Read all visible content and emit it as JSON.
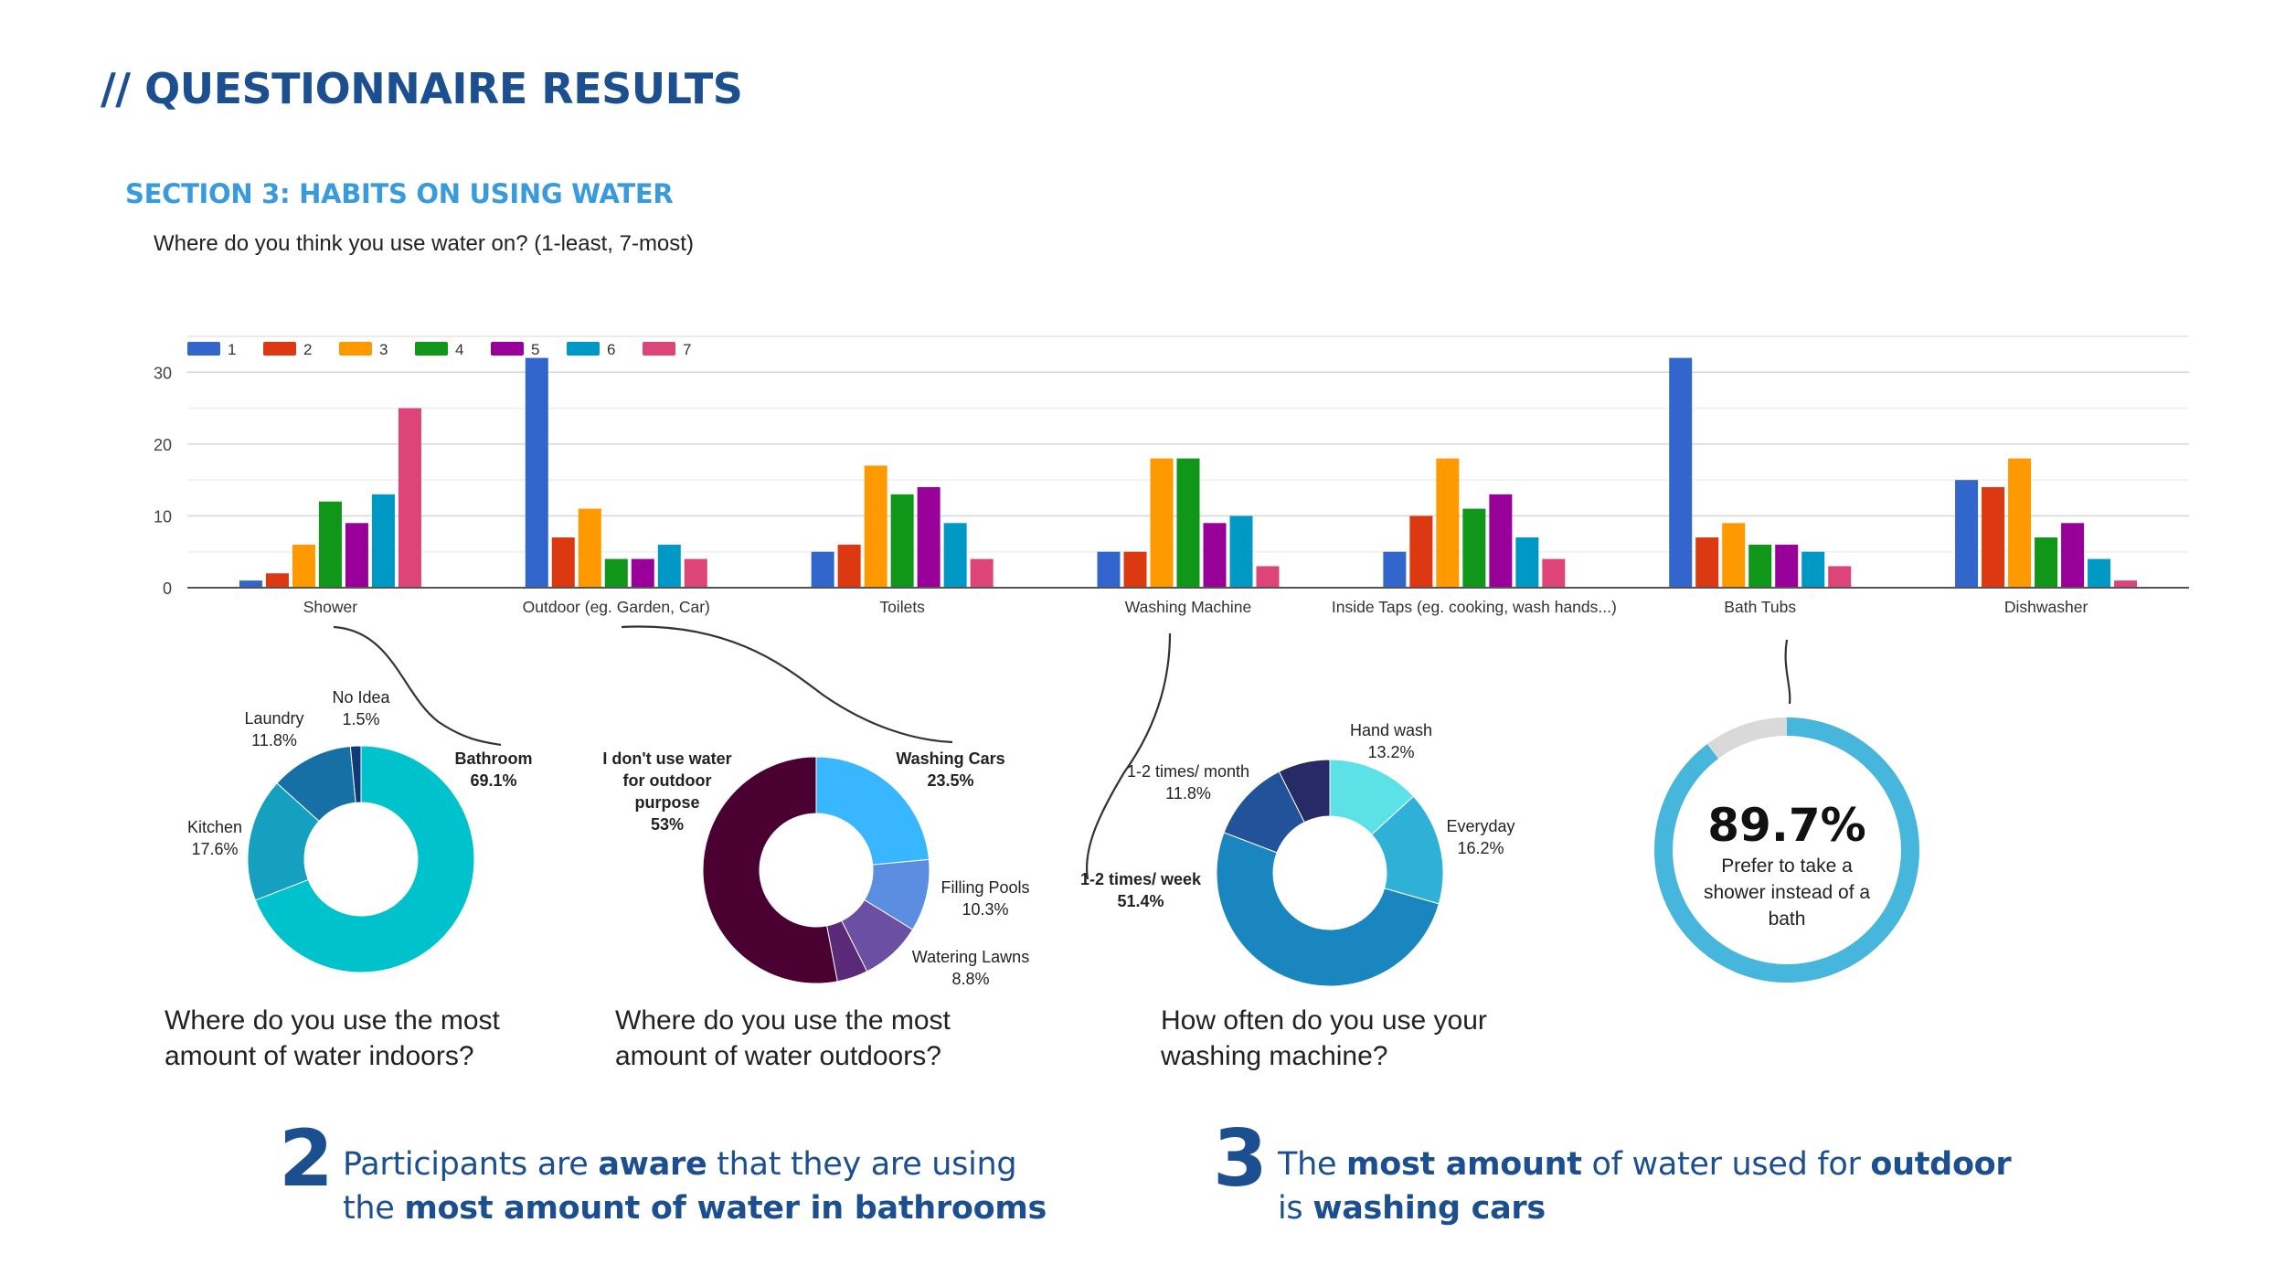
{
  "header": {
    "title": "// QUESTIONNAIRE RESULTS"
  },
  "section": {
    "title": "SECTION 3: HABITS ON USING WATER",
    "question": "Where do you think you use water on? (1-least, 7-most)"
  },
  "colors": {
    "series": [
      "#3366cc",
      "#dc3912",
      "#ff9900",
      "#109618",
      "#990099",
      "#0099c6",
      "#dd4477"
    ],
    "title": "#1b4f8f",
    "section": "#3a9bdc",
    "ring": "#46b6dc",
    "ring_track": "#d9d9d9"
  },
  "chart_data": [
    {
      "type": "bar",
      "title": "Where do you think you use water on? (1-least, 7-most)",
      "categories": [
        "Shower",
        "Outdoor (eg. Garden, Car)",
        "Toilets",
        "Washing Machine",
        "Inside Taps (eg. cooking, wash hands...)",
        "Bath Tubs",
        "Dishwasher"
      ],
      "series": [
        {
          "name": "1",
          "values": [
            1,
            32,
            5,
            5,
            5,
            32,
            15
          ]
        },
        {
          "name": "2",
          "values": [
            2,
            7,
            6,
            5,
            10,
            7,
            14
          ]
        },
        {
          "name": "3",
          "values": [
            6,
            11,
            17,
            18,
            18,
            9,
            18
          ]
        },
        {
          "name": "4",
          "values": [
            12,
            4,
            13,
            18,
            11,
            6,
            7
          ]
        },
        {
          "name": "5",
          "values": [
            9,
            4,
            14,
            9,
            13,
            6,
            9
          ]
        },
        {
          "name": "6",
          "values": [
            13,
            6,
            9,
            10,
            7,
            5,
            4
          ]
        },
        {
          "name": "7",
          "values": [
            25,
            4,
            4,
            3,
            4,
            3,
            1
          ]
        }
      ],
      "ylim": [
        0,
        35
      ],
      "yticks": [
        0,
        10,
        20,
        30
      ],
      "grid": true,
      "legend": "top-left"
    },
    {
      "type": "pie",
      "title": "Where do you use the most amount of water indoors?",
      "slices": [
        {
          "label": "Bathroom",
          "pct_label": "69.1%",
          "value": 69.1,
          "color": "#00c2cc",
          "bold": true
        },
        {
          "label": "Kitchen",
          "pct_label": "17.6%",
          "value": 17.6,
          "color": "#14a0be",
          "bold": false
        },
        {
          "label": "Laundry",
          "pct_label": "11.8%",
          "value": 11.8,
          "color": "#1670a6",
          "bold": false
        },
        {
          "label": "No Idea",
          "pct_label": "1.5%",
          "value": 1.5,
          "color": "#0f3a78",
          "bold": false
        }
      ]
    },
    {
      "type": "pie",
      "title": "Where do you use the most amount of water outdoors?",
      "slices": [
        {
          "label": "Washing Cars",
          "pct_label": "23.5%",
          "value": 23.5,
          "color": "#38b6ff",
          "bold": true
        },
        {
          "label": "Filling Pools",
          "pct_label": "10.3%",
          "value": 10.3,
          "color": "#5b8ee0",
          "bold": false
        },
        {
          "label": "Watering Lawns",
          "pct_label": "8.8%",
          "value": 8.8,
          "color": "#6a4fa3",
          "bold": false
        },
        {
          "label": "",
          "pct_label": "",
          "value": 4.4,
          "color": "#5a2a78",
          "bold": false
        },
        {
          "label": "I don't use water for outdoor purpose",
          "pct_label": "53%",
          "value": 53,
          "color": "#4a0030",
          "bold": true
        }
      ]
    },
    {
      "type": "pie",
      "title": "How often do you use your washing machine?",
      "slices": [
        {
          "label": "Hand wash",
          "pct_label": "13.2%",
          "value": 13.2,
          "color": "#5ce1e6",
          "bold": false
        },
        {
          "label": "Everyday",
          "pct_label": "16.2%",
          "value": 16.2,
          "color": "#2fb0d6",
          "bold": false
        },
        {
          "label": "1-2 times/ week",
          "pct_label": "51.4%",
          "value": 51.4,
          "color": "#1a86c0",
          "bold": true
        },
        {
          "label": "1-2 times/ month",
          "pct_label": "11.8%",
          "value": 11.8,
          "color": "#22539a",
          "bold": false
        },
        {
          "label": "",
          "pct_label": "",
          "value": 7.4,
          "color": "#262b66",
          "bold": false
        }
      ]
    }
  ],
  "stat": {
    "value": "89.7%",
    "fraction": 0.897,
    "line1": "Prefer to take a",
    "line2": "shower instead of a",
    "line3": "bath"
  },
  "captions": {
    "indoor": [
      "Where do you use the most",
      "amount of water indoors?"
    ],
    "outdoor": [
      "Where do you use the most",
      "amount of water outdoors?"
    ],
    "washing": [
      "How often do you use your",
      "washing machine?"
    ]
  },
  "takeaways": [
    {
      "number": "2",
      "line1": [
        {
          "t": "Participants are ",
          "b": false
        },
        {
          "t": "aware",
          "b": true
        },
        {
          "t": " that they are  using",
          "b": false
        }
      ],
      "line2": [
        {
          "t": "the ",
          "b": false
        },
        {
          "t": "most amount of water in bathrooms",
          "b": true
        }
      ]
    },
    {
      "number": "3",
      "line1": [
        {
          "t": "The ",
          "b": false
        },
        {
          "t": "most amount",
          "b": true
        },
        {
          "t": " of water used for ",
          "b": false
        },
        {
          "t": "outdoor",
          "b": true
        }
      ],
      "line2": [
        {
          "t": "is ",
          "b": false
        },
        {
          "t": "washing cars",
          "b": true
        }
      ]
    }
  ]
}
